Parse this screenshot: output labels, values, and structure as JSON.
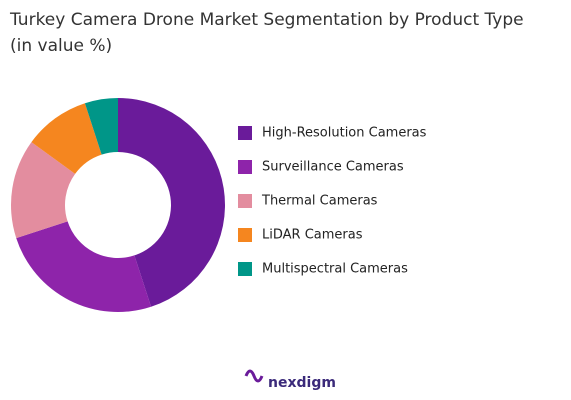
{
  "chart_data": {
    "type": "donut",
    "title": "Turkey Camera Drone Market Segmentation by Product Type",
    "subtitle": "(in value %)",
    "categories": [
      "High-Resolution Cameras",
      "Surveillance Cameras",
      "Thermal Cameras",
      "LiDAR Cameras",
      "Multispectral Cameras"
    ],
    "values": [
      45,
      25,
      15,
      10,
      5
    ],
    "colors": [
      "#6a1b9a",
      "#8e24aa",
      "#e38d9f",
      "#f5861f",
      "#009688"
    ],
    "legend": "right"
  },
  "brand": "nexdigm"
}
